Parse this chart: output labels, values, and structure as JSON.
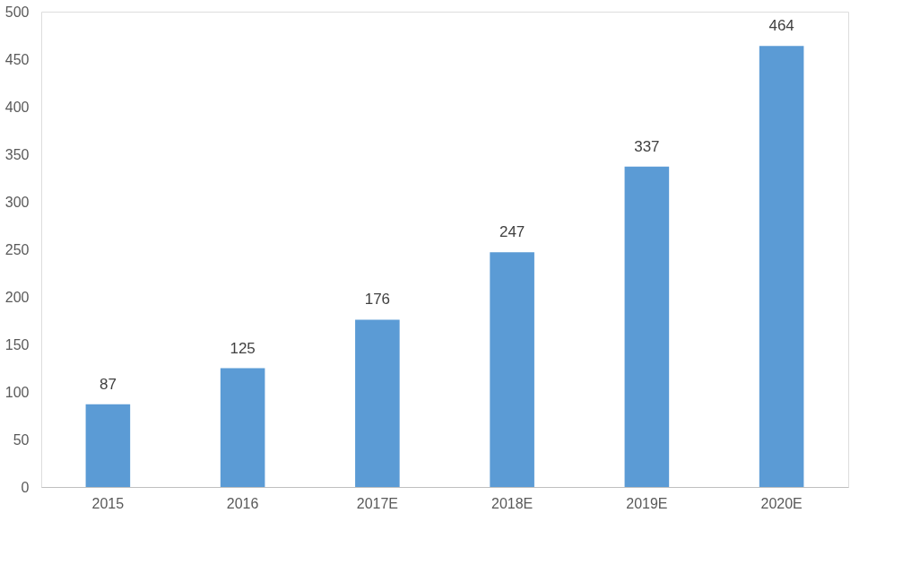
{
  "chart_data": {
    "type": "bar",
    "categories": [
      "2015",
      "2016",
      "2017E",
      "2018E",
      "2019E",
      "2020E"
    ],
    "values": [
      87,
      125,
      176,
      247,
      337,
      464
    ],
    "color": "#5b9bd5",
    "ylim": [
      0,
      500
    ],
    "yticks": [
      0,
      50,
      100,
      150,
      200,
      250,
      300,
      350,
      400,
      450,
      500
    ],
    "grid": false,
    "data_labels": true
  }
}
